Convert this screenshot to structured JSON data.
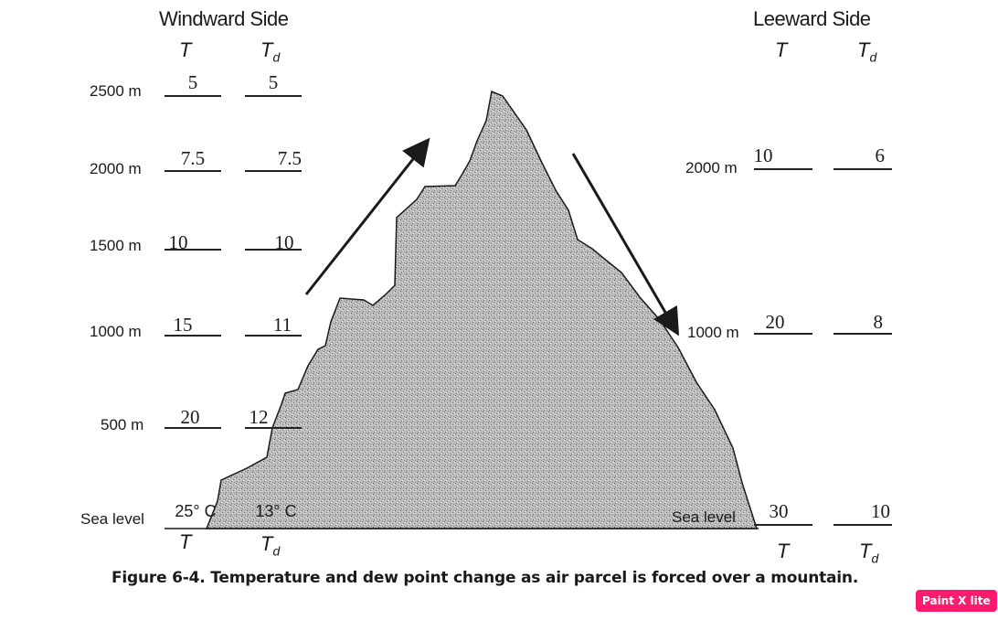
{
  "windward": {
    "title": "Windward Side",
    "col_t": "T",
    "col_td": "T",
    "col_td_sub": "d",
    "rows": [
      {
        "altitude": "2500 m",
        "t": "5",
        "td": "5"
      },
      {
        "altitude": "2000 m",
        "t": "7.5",
        "td": "7.5"
      },
      {
        "altitude": "1500 m",
        "t": "10",
        "td": "10"
      },
      {
        "altitude": "1000 m",
        "t": "15",
        "td": "11"
      },
      {
        "altitude": "500 m",
        "t": "20",
        "td": "12"
      },
      {
        "altitude": "Sea level",
        "t": "25° C",
        "td": "13° C"
      }
    ],
    "bottom_t": "T",
    "bottom_td": "T",
    "bottom_td_sub": "d"
  },
  "leeward": {
    "title": "Leeward Side",
    "col_t": "T",
    "col_td": "T",
    "col_td_sub": "d",
    "rows": [
      {
        "altitude": "2000 m",
        "t": "10",
        "td": "6"
      },
      {
        "altitude": "1000 m",
        "t": "20",
        "td": "8"
      },
      {
        "altitude": "Sea level",
        "t": "30",
        "td": "10"
      }
    ],
    "bottom_t": "T",
    "bottom_td": "T",
    "bottom_td_sub": "d"
  },
  "caption": "Figure 6-4. Temperature and dew point change as air parcel is forced over a mountain.",
  "badge": "Paint X lite",
  "colors": {
    "mountain": "#b5b5b5",
    "ink": "#1a1a1a",
    "badge": "#ff1a6e"
  }
}
